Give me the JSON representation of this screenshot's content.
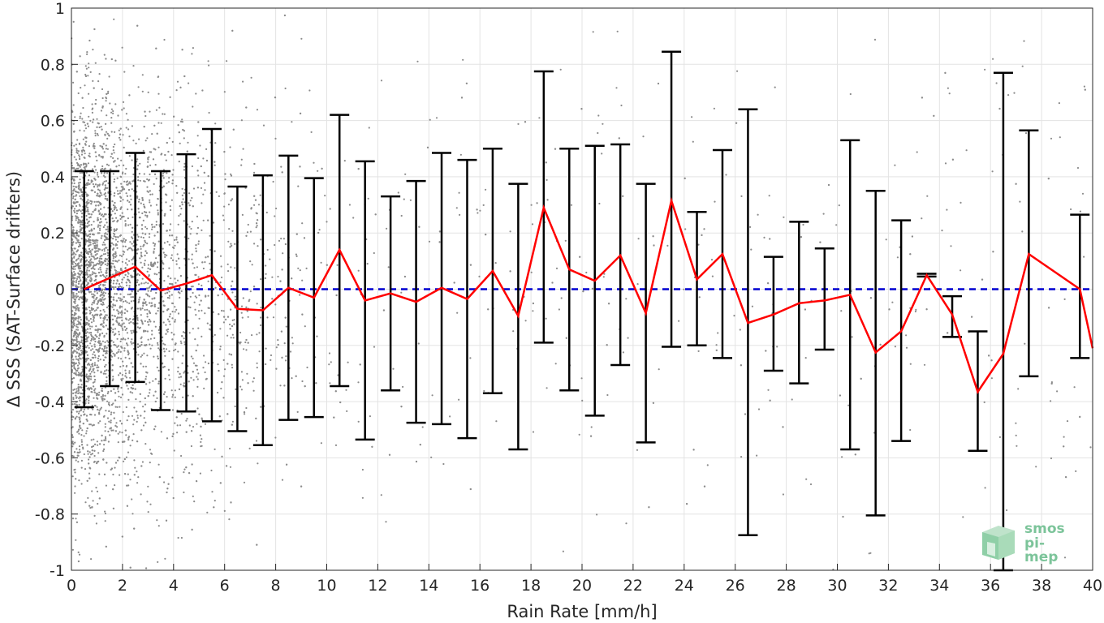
{
  "chart_data": {
    "type": "scatter",
    "xlabel": "Rain Rate [mm/h]",
    "ylabel": "Δ SSS (SAT-Surface drifters)",
    "xlim": [
      0,
      40
    ],
    "ylim": [
      -1,
      1
    ],
    "xticks": [
      0,
      2,
      4,
      6,
      8,
      10,
      12,
      14,
      16,
      18,
      20,
      22,
      24,
      26,
      28,
      30,
      32,
      34,
      36,
      38,
      40
    ],
    "yticks": [
      -1,
      -0.8,
      -0.6,
      -0.4,
      -0.2,
      0,
      0.2,
      0.4,
      0.6,
      0.8,
      1
    ],
    "ytick_labels": [
      "-1",
      "-0.8",
      "-0.6",
      "-0.4",
      "-0.2",
      "0",
      "0.2",
      "0.4",
      "0.6",
      "0.8",
      "1"
    ],
    "grid": true,
    "colors": {
      "scatter": "#8c8c8c",
      "mean_line": "#ff0000",
      "zero_line": "#0000d0",
      "errorbar": "#000000"
    },
    "scatter_note": "dense grey point cloud, densest at low rain rates, thinning toward higher rain rates",
    "series": [
      {
        "kind": "binned_mean_with_errorbars",
        "x": [
          0.5,
          1.5,
          2.5,
          3.5,
          4.5,
          5.5,
          6.5,
          7.5,
          8.5,
          9.5,
          10.5,
          11.5,
          12.5,
          13.5,
          14.5,
          15.5,
          16.5,
          17.5,
          18.5,
          19.5,
          20.5,
          21.5,
          22.5,
          23.5,
          24.5,
          25.5,
          26.5,
          27.5,
          28.5,
          29.5,
          30.5,
          31.5,
          32.5,
          33.5,
          34.5,
          35.5,
          36.5,
          37.5,
          39.5,
          40
        ],
        "mean": [
          0.0,
          0.04,
          0.08,
          -0.005,
          0.02,
          0.05,
          -0.07,
          -0.075,
          0.005,
          -0.03,
          0.14,
          -0.04,
          -0.015,
          -0.045,
          0.005,
          -0.035,
          0.065,
          -0.095,
          0.29,
          0.07,
          0.03,
          0.12,
          -0.085,
          0.315,
          0.035,
          0.125,
          -0.12,
          -0.09,
          -0.05,
          -0.04,
          -0.02,
          -0.225,
          -0.15,
          0.05,
          -0.09,
          -0.365,
          -0.23,
          0.125,
          0.0,
          -0.21
        ],
        "upper": [
          0.42,
          0.42,
          0.485,
          0.42,
          0.48,
          0.57,
          0.365,
          0.405,
          0.475,
          0.395,
          0.62,
          0.455,
          0.33,
          0.385,
          0.485,
          0.46,
          0.5,
          0.375,
          0.775,
          0.5,
          0.51,
          0.515,
          0.375,
          0.845,
          0.275,
          0.495,
          0.64,
          0.115,
          0.24,
          0.145,
          0.53,
          0.35,
          0.245,
          0.055,
          -0.025,
          -0.15,
          0.77,
          0.565,
          0.265,
          null
        ],
        "lower": [
          -0.42,
          -0.345,
          -0.33,
          -0.43,
          -0.435,
          -0.47,
          -0.505,
          -0.555,
          -0.465,
          -0.455,
          -0.345,
          -0.535,
          -0.36,
          -0.475,
          -0.48,
          -0.53,
          -0.37,
          -0.57,
          -0.19,
          -0.36,
          -0.45,
          -0.27,
          -0.545,
          -0.205,
          -0.2,
          -0.245,
          -0.875,
          -0.29,
          -0.335,
          -0.215,
          -0.57,
          -0.805,
          -0.54,
          0.045,
          -0.17,
          -0.575,
          -1.0,
          -0.31,
          -0.245,
          null
        ]
      }
    ],
    "reference_line": {
      "y": 0,
      "style": "dashed"
    }
  },
  "logo": {
    "line1": "smos",
    "line2": "pi-mep"
  }
}
